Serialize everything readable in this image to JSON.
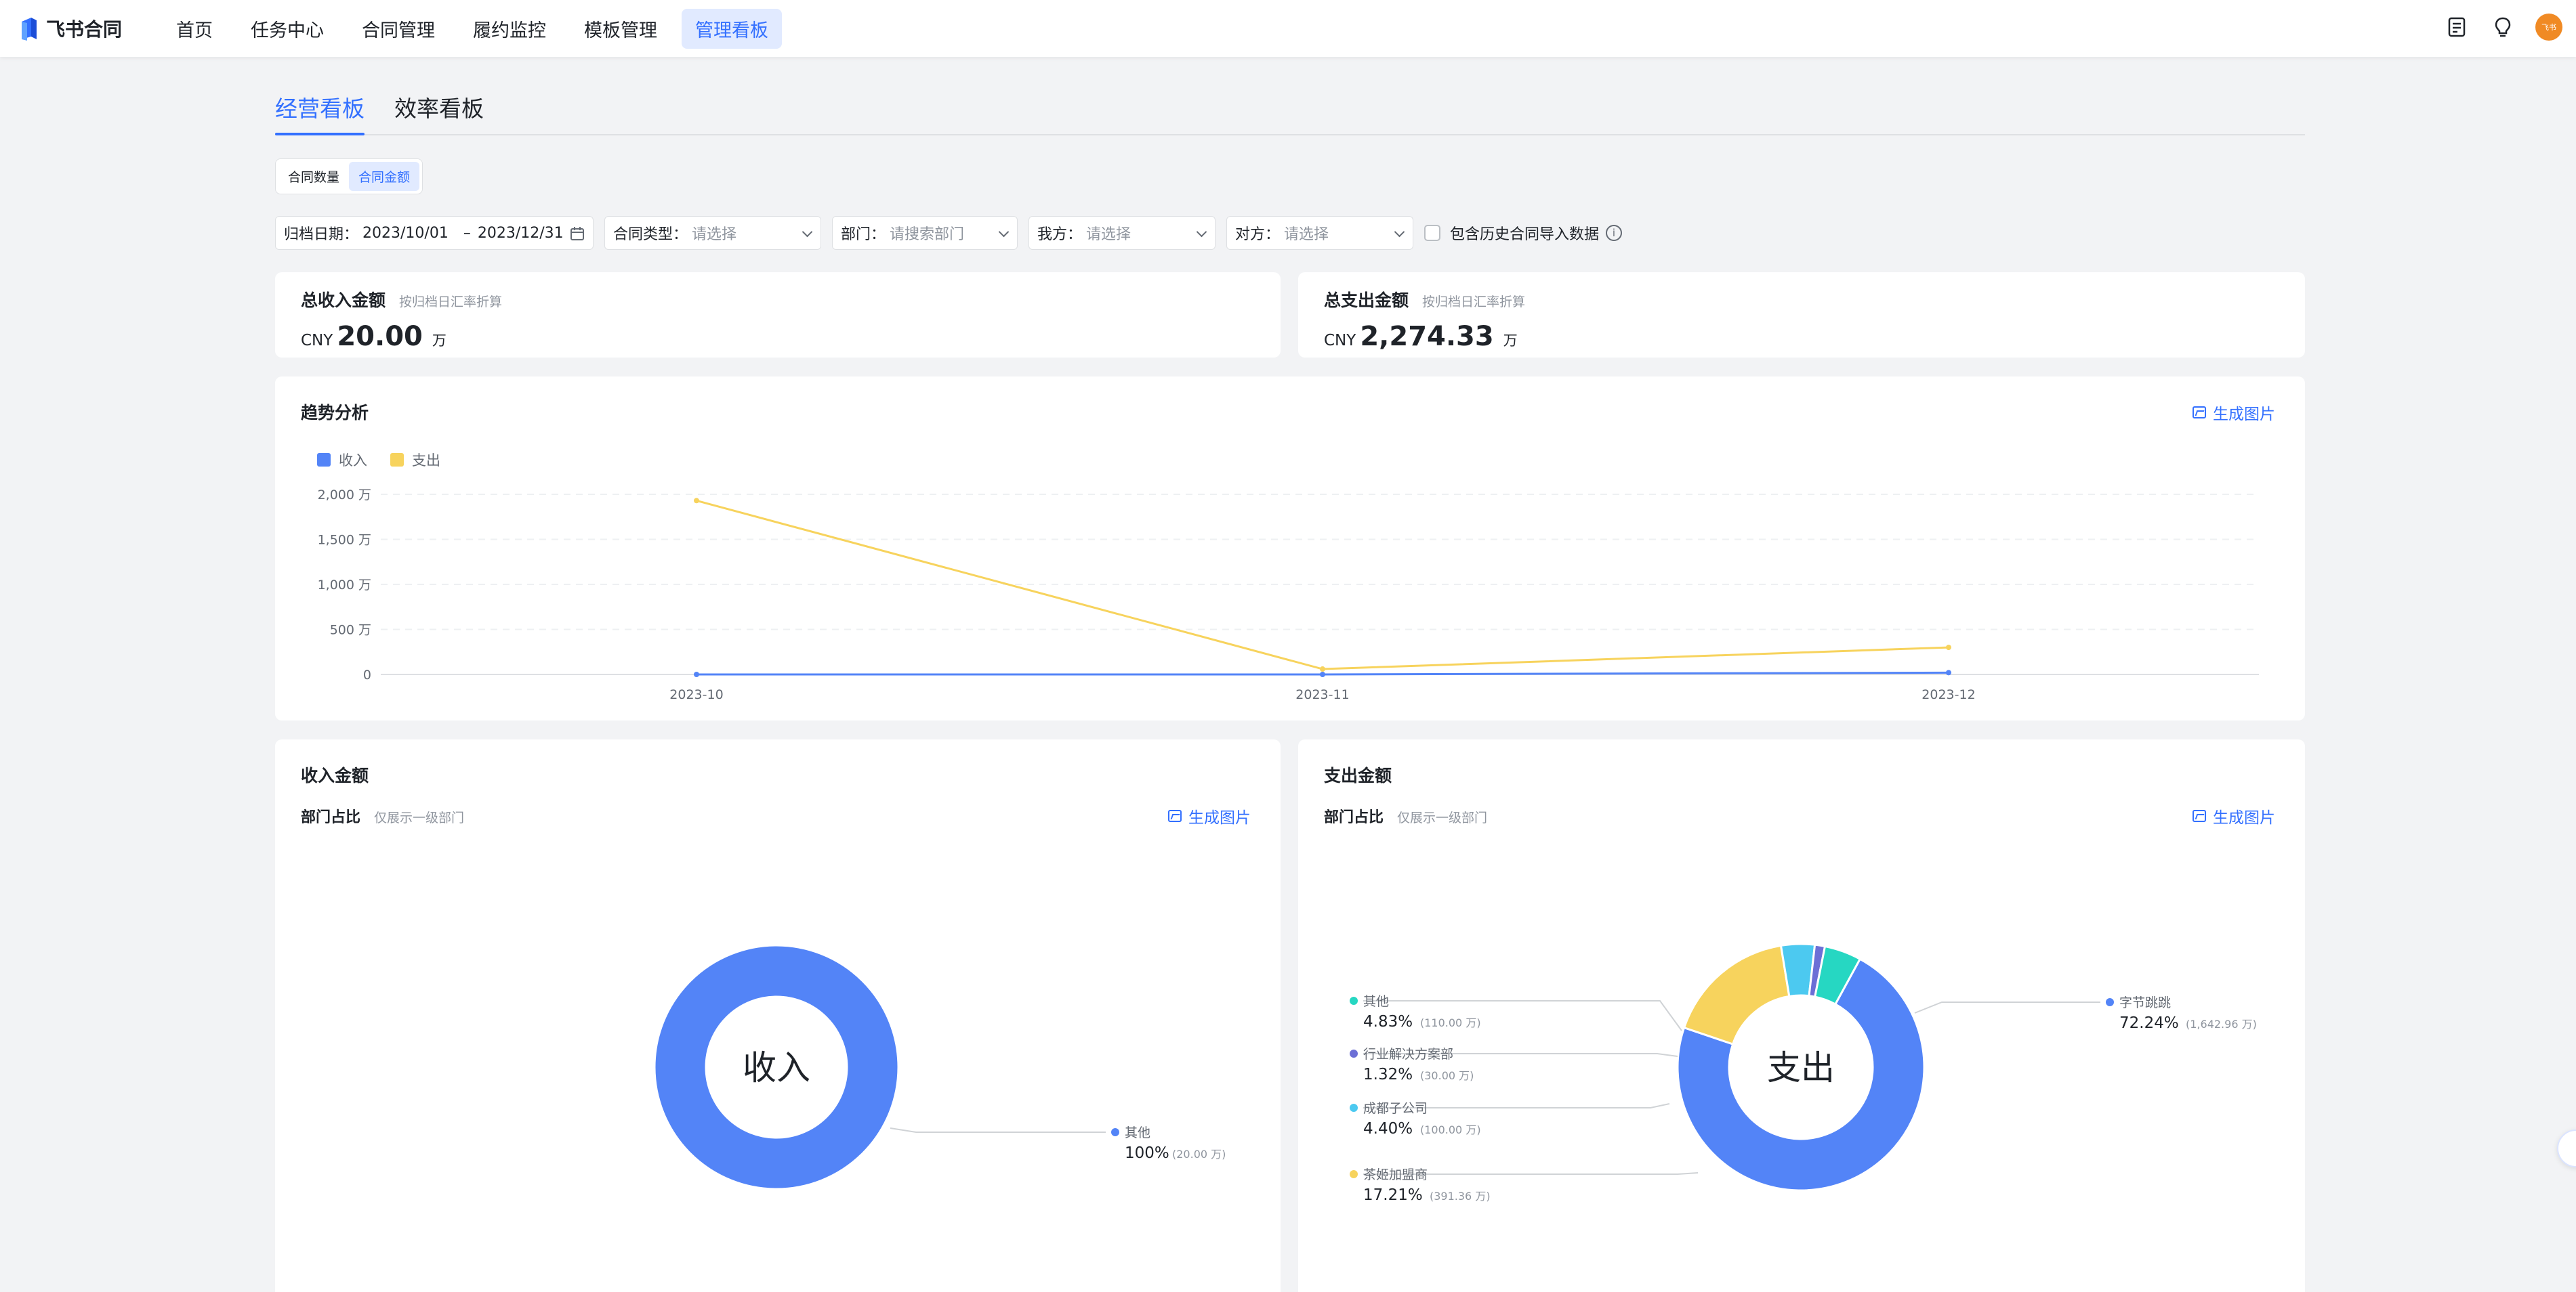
{
  "app": {
    "name": "飞书合同",
    "avatar_text": "飞书"
  },
  "nav": [
    {
      "label": "首页",
      "active": false
    },
    {
      "label": "任务中心",
      "active": false
    },
    {
      "label": "合同管理",
      "active": false
    },
    {
      "label": "履约监控",
      "active": false
    },
    {
      "label": "模板管理",
      "active": false
    },
    {
      "label": "管理看板",
      "active": true
    }
  ],
  "tabs": [
    {
      "label": "经营看板",
      "active": true
    },
    {
      "label": "效率看板",
      "active": false
    }
  ],
  "segment": [
    {
      "label": "合同数量",
      "active": false
    },
    {
      "label": "合同金额",
      "active": true
    }
  ],
  "filters": {
    "date_label": "归档日期：",
    "date_start": "2023/10/01",
    "date_sep": "–",
    "date_end": "2023/12/31",
    "type_label": "合同类型：",
    "type_placeholder": "请选择",
    "dept_label": "部门：",
    "dept_placeholder": "请搜索部门",
    "self_label": "我方：",
    "self_placeholder": "请选择",
    "other_label": "对方：",
    "other_placeholder": "请选择",
    "history_label": "包含历史合同导入数据"
  },
  "kpi": {
    "income": {
      "title": "总收入金额",
      "note": "按归档日汇率折算",
      "currency": "CNY",
      "value": "20.00",
      "unit": "万"
    },
    "expense": {
      "title": "总支出金额",
      "note": "按归档日汇率折算",
      "currency": "CNY",
      "value": "2,274.33",
      "unit": "万"
    }
  },
  "gen_image_label": "生成图片",
  "trend": {
    "title": "趋势分析",
    "colors": {
      "income": "#5384f7",
      "expense": "#f7d35d"
    }
  },
  "income_panel": {
    "title": "收入金额",
    "subtitle": "部门占比",
    "note": "仅展示一级部门",
    "center": "收入"
  },
  "expense_panel": {
    "title": "支出金额",
    "subtitle": "部门占比",
    "note": "仅展示一级部门",
    "center": "支出"
  },
  "chart_data": [
    {
      "type": "line",
      "title": "趋势分析",
      "x": [
        "2023-10",
        "2023-11",
        "2023-12"
      ],
      "ylim": [
        0,
        2000
      ],
      "yticks": [
        "0",
        "500 万",
        "1,000 万",
        "1,500 万",
        "2,000 万"
      ],
      "legend": "top-left",
      "grid": true,
      "series": [
        {
          "name": "收入",
          "values": [
            0,
            0,
            20
          ],
          "color": "#5384f7"
        },
        {
          "name": "支出",
          "values": [
            1930,
            60,
            300
          ],
          "color": "#f7d35d"
        }
      ]
    },
    {
      "type": "pie",
      "title": "收入金额",
      "slices": [
        {
          "name": "其他",
          "percent": "100%",
          "amount": "(20.00 万)",
          "value": 100,
          "color": "#5384f7"
        }
      ]
    },
    {
      "type": "pie",
      "title": "支出金额",
      "slices": [
        {
          "name": "字节跳跳",
          "percent": "72.24%",
          "amount": "(1,642.96 万)",
          "value": 72.24,
          "color": "#5384f7"
        },
        {
          "name": "茶姬加盟商",
          "percent": "17.21%",
          "amount": "(391.36 万)",
          "value": 17.21,
          "color": "#f7d35d"
        },
        {
          "name": "成都子公司",
          "percent": "4.40%",
          "amount": "(100.00 万)",
          "value": 4.4,
          "color": "#4cc9f0"
        },
        {
          "name": "行业解决方案部",
          "percent": "1.32%",
          "amount": "(30.00 万)",
          "value": 1.32,
          "color": "#6c6fd6"
        },
        {
          "name": "其他",
          "percent": "4.83%",
          "amount": "(110.00 万)",
          "value": 4.83,
          "color": "#26d7c2"
        }
      ]
    }
  ]
}
